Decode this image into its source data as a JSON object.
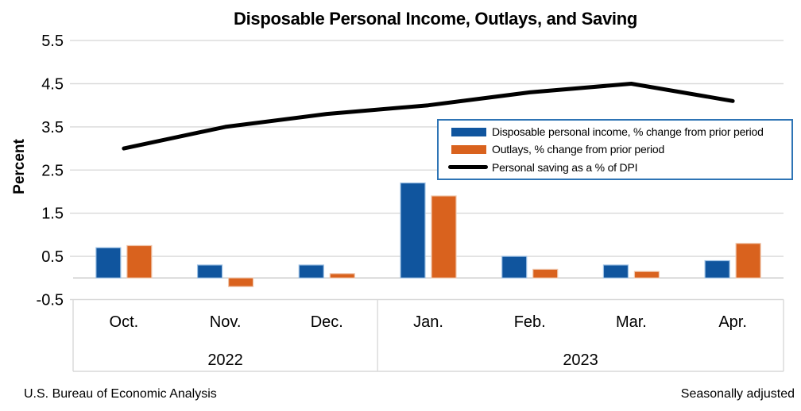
{
  "title": "Disposable Personal Income, Outlays, and Saving",
  "footer": {
    "left": "U.S. Bureau of Economic Analysis",
    "right": "Seasonally adjusted"
  },
  "chart_data": {
    "type": "bar",
    "subtype": "grouped-bars-with-line-overlay",
    "title": "Disposable Personal Income, Outlays, and Saving",
    "xlabel": "",
    "ylabel": "Percent",
    "ylim": [
      -0.5,
      5.5
    ],
    "yticks": [
      5.5,
      4.5,
      3.5,
      2.5,
      1.5,
      0.5,
      -0.5
    ],
    "grid": true,
    "legend_position": "upper-right",
    "categories": [
      "Oct.",
      "Nov.",
      "Dec.",
      "Jan.",
      "Feb.",
      "Mar.",
      "Apr."
    ],
    "year_groups": [
      {
        "label": "2022",
        "span": 3
      },
      {
        "label": "2023",
        "span": 4
      }
    ],
    "series": [
      {
        "name": "Disposable personal income, % change from prior period",
        "type": "bar",
        "color": "#10559E",
        "values": [
          0.7,
          0.3,
          0.3,
          2.2,
          0.5,
          0.3,
          0.4
        ]
      },
      {
        "name": "Outlays, % change from prior period",
        "type": "bar",
        "color": "#D9621E",
        "values": [
          0.75,
          -0.2,
          0.1,
          1.9,
          0.2,
          0.15,
          0.8
        ]
      },
      {
        "name": "Personal saving as a % of DPI",
        "type": "line",
        "color": "#000000",
        "values": [
          3.0,
          3.5,
          3.8,
          4.0,
          4.3,
          4.5,
          4.1
        ]
      }
    ]
  },
  "colors": {
    "background": "#FFFFFF",
    "gridline": "#D9D9D9",
    "axis_line": "#C6C6C6",
    "legend_border": "#2E74B5",
    "bar_blue": "#10559E",
    "bar_blue_edge": "#9CC0E4",
    "bar_orange": "#D9621E",
    "bar_orange_edge": "#EFC6AC",
    "line_black": "#000000",
    "text": "#000000"
  }
}
